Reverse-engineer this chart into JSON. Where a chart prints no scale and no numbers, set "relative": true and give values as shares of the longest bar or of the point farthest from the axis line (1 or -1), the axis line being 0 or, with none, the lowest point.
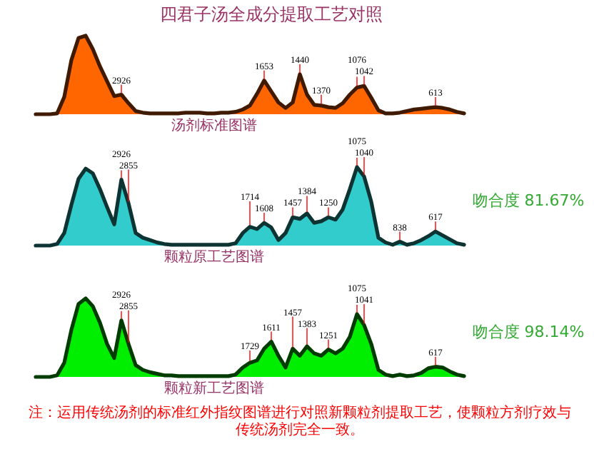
{
  "chart_data": [
    {
      "type": "area",
      "title": "四君子汤全成分提取工艺对照",
      "xlabel": "汤剂标准图谱",
      "relative": true,
      "categories": [
        null,
        null,
        null,
        null,
        null,
        null,
        null,
        null,
        null,
        null,
        null,
        null,
        "2926",
        null,
        null,
        null,
        null,
        null,
        null,
        null,
        null,
        null,
        null,
        null,
        null,
        null,
        null,
        null,
        null,
        null,
        null,
        null,
        "1653",
        null,
        null,
        null,
        null,
        "1440",
        null,
        null,
        "1370",
        null,
        null,
        null,
        null,
        "1076",
        "1042",
        null,
        null,
        null,
        null,
        null,
        null,
        null,
        null,
        null,
        "613",
        null,
        null,
        null,
        null
      ],
      "series": [
        {
          "color": "#ff6600",
          "values": [
            0,
            0,
            0,
            0.01,
            0.22,
            0.69,
            0.97,
            1,
            0.83,
            0.61,
            0.42,
            0.23,
            0.25,
            0.14,
            0.04,
            0.02,
            0.01,
            0.01,
            0.01,
            0.01,
            0.01,
            0.02,
            0.02,
            0.02,
            0.01,
            0.01,
            0.02,
            0.02,
            0.03,
            0.06,
            0.11,
            0.26,
            0.43,
            0.29,
            0.15,
            0.08,
            0.15,
            0.51,
            0.25,
            0.12,
            0.11,
            0.09,
            0.08,
            0.14,
            0.25,
            0.34,
            0.36,
            0.21,
            0.05,
            0.01,
            0.01,
            0.02,
            0.04,
            0.06,
            0.07,
            0.08,
            0.09,
            0.08,
            0.06,
            0.03,
            0.01
          ]
        }
      ]
    },
    {
      "type": "area",
      "xlabel": "颗粒原工艺图谱",
      "relative": true,
      "annotations": [
        "吻合度 81.67%"
      ],
      "categories": [
        null,
        null,
        null,
        null,
        null,
        null,
        null,
        null,
        null,
        null,
        null,
        null,
        "2926",
        "2855",
        null,
        null,
        null,
        null,
        null,
        null,
        null,
        null,
        null,
        null,
        null,
        null,
        null,
        null,
        null,
        null,
        "1714",
        null,
        "1608",
        null,
        null,
        null,
        "1457",
        null,
        "1384",
        null,
        null,
        "1250",
        null,
        null,
        null,
        "1075",
        "1040",
        null,
        null,
        null,
        null,
        "838",
        null,
        null,
        null,
        null,
        "617",
        null,
        null,
        null,
        null
      ],
      "series": [
        {
          "color": "#33cccc",
          "values": [
            0,
            0,
            0,
            0.02,
            0.16,
            0.52,
            0.85,
            0.98,
            0.92,
            0.72,
            0.49,
            0.27,
            0.84,
            0.54,
            0.16,
            0.1,
            0.07,
            0.04,
            0.02,
            0.01,
            0.01,
            0.01,
            0.01,
            0.01,
            0.01,
            0.01,
            0.01,
            0.01,
            0.03,
            0.16,
            0.24,
            0.21,
            0.29,
            0.23,
            0.07,
            0.16,
            0.36,
            0.34,
            0.41,
            0.29,
            0.31,
            0.36,
            0.33,
            0.46,
            0.72,
            1,
            0.88,
            0.56,
            0.1,
            0.04,
            0.01,
            0.05,
            0.01,
            0.03,
            0.07,
            0.12,
            0.18,
            0.13,
            0.08,
            0.03,
            0.01
          ]
        }
      ]
    },
    {
      "type": "area",
      "xlabel": "颗粒新工艺图谱",
      "relative": true,
      "annotations": [
        "吻合度 98.14%",
        "注：运用传统汤剂的标准红外指纹图谱进行对照新颗粒剂提取工艺，使颗粒方剂疗效与传统汤剂完全一致。"
      ],
      "categories": [
        null,
        null,
        null,
        null,
        null,
        null,
        null,
        null,
        null,
        null,
        null,
        null,
        "2926",
        "2855",
        null,
        null,
        null,
        null,
        null,
        null,
        null,
        null,
        null,
        null,
        null,
        null,
        null,
        null,
        null,
        null,
        "1729",
        null,
        null,
        "1611",
        null,
        null,
        "1457",
        null,
        "1383",
        null,
        null,
        "1251",
        null,
        null,
        null,
        "1075",
        "1041",
        null,
        null,
        null,
        null,
        null,
        null,
        null,
        null,
        null,
        "617",
        null,
        null,
        null,
        null
      ],
      "series": [
        {
          "color": "#00ee00",
          "values": [
            0,
            0,
            0,
            0.02,
            0.18,
            0.6,
            0.93,
            1,
            0.9,
            0.69,
            0.42,
            0.24,
            0.72,
            0.42,
            0.15,
            0.09,
            0.06,
            0.04,
            0.02,
            0.02,
            0.01,
            0.01,
            0.01,
            0.01,
            0.01,
            0.01,
            0.01,
            0.01,
            0.03,
            0.12,
            0.18,
            0.21,
            0.36,
            0.45,
            0.27,
            0.12,
            0.36,
            0.27,
            0.39,
            0.3,
            0.27,
            0.35,
            0.3,
            0.36,
            0.51,
            0.8,
            0.66,
            0.42,
            0.09,
            0.03,
            0.01,
            0.03,
            0.01,
            0.02,
            0.05,
            0.11,
            0.13,
            0.12,
            0.07,
            0.03,
            0.01
          ]
        }
      ]
    }
  ]
}
